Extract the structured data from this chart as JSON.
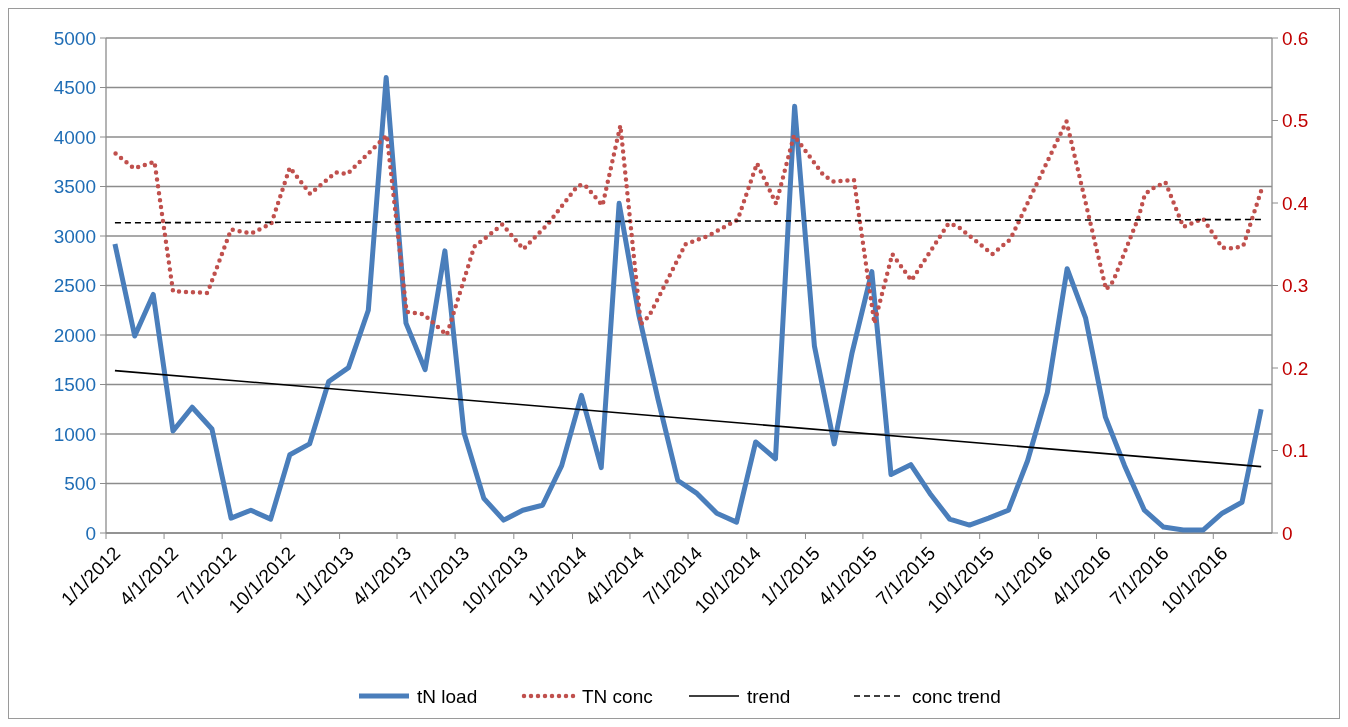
{
  "chart_data": {
    "type": "line",
    "xlim": [
      "2012-01-01",
      "2017-01-01"
    ],
    "xticks": [
      {
        "value": "2012-01-01",
        "label": "1/1/2012"
      },
      {
        "value": "2012-04-01",
        "label": "4/1/2012"
      },
      {
        "value": "2012-07-01",
        "label": "7/1/2012"
      },
      {
        "value": "2012-10-01",
        "label": "10/1/2012"
      },
      {
        "value": "2013-01-01",
        "label": "1/1/2013"
      },
      {
        "value": "2013-04-01",
        "label": "4/1/2013"
      },
      {
        "value": "2013-07-01",
        "label": "7/1/2013"
      },
      {
        "value": "2013-10-01",
        "label": "10/1/2013"
      },
      {
        "value": "2014-01-01",
        "label": "1/1/2014"
      },
      {
        "value": "2014-04-01",
        "label": "4/1/2014"
      },
      {
        "value": "2014-07-01",
        "label": "7/1/2014"
      },
      {
        "value": "2014-10-01",
        "label": "10/1/2014"
      },
      {
        "value": "2015-01-01",
        "label": "1/1/2015"
      },
      {
        "value": "2015-04-01",
        "label": "4/1/2015"
      },
      {
        "value": "2015-07-01",
        "label": "7/1/2015"
      },
      {
        "value": "2015-10-01",
        "label": "10/1/2015"
      },
      {
        "value": "2016-01-01",
        "label": "1/1/2016"
      },
      {
        "value": "2016-04-01",
        "label": "4/1/2016"
      },
      {
        "value": "2016-07-01",
        "label": "7/1/2016"
      },
      {
        "value": "2016-10-01",
        "label": "10/1/2016"
      }
    ],
    "ylim": [
      0,
      5000
    ],
    "yticks": [
      0,
      500,
      1000,
      1500,
      2000,
      2500,
      3000,
      3500,
      4000,
      4500,
      5000
    ],
    "y2lim": [
      0,
      0.6
    ],
    "y2ticks": [
      0,
      0.1,
      0.2,
      0.3,
      0.4,
      0.5,
      0.6
    ],
    "grid": "y",
    "legend": "bottom",
    "x": [
      "2012-01-15",
      "2012-02-15",
      "2012-03-15",
      "2012-04-15",
      "2012-05-15",
      "2012-06-15",
      "2012-07-15",
      "2012-08-15",
      "2012-09-15",
      "2012-10-15",
      "2012-11-15",
      "2012-12-15",
      "2013-01-15",
      "2013-02-15",
      "2013-03-15",
      "2013-04-15",
      "2013-05-15",
      "2013-06-15",
      "2013-07-15",
      "2013-08-15",
      "2013-09-15",
      "2013-10-15",
      "2013-11-15",
      "2013-12-15",
      "2014-01-15",
      "2014-02-15",
      "2014-03-15",
      "2014-04-15",
      "2014-05-15",
      "2014-06-15",
      "2014-07-15",
      "2014-08-15",
      "2014-09-15",
      "2014-10-15",
      "2014-11-15",
      "2014-12-15",
      "2015-01-15",
      "2015-02-15",
      "2015-03-15",
      "2015-04-15",
      "2015-05-15",
      "2015-06-15",
      "2015-07-15",
      "2015-08-15",
      "2015-09-15",
      "2015-10-15",
      "2015-11-15",
      "2015-12-15",
      "2016-01-15",
      "2016-02-15",
      "2016-03-15",
      "2016-04-15",
      "2016-05-15",
      "2016-06-15",
      "2016-07-15",
      "2016-08-15",
      "2016-09-15",
      "2016-10-15",
      "2016-11-15",
      "2016-12-15"
    ],
    "series": [
      {
        "name": "tN load",
        "color": "#4a7ebb",
        "line_style": "solid",
        "values": [
          2920,
          1990,
          2410,
          1030,
          1270,
          1050,
          150,
          230,
          140,
          790,
          900,
          1530,
          1670,
          2250,
          4600,
          2120,
          1650,
          2850,
          1010,
          350,
          130,
          230,
          280,
          680,
          1390,
          660,
          3330,
          2200,
          1350,
          530,
          400,
          200,
          110,
          920,
          750,
          4310,
          1890,
          900,
          1820,
          2640,
          590,
          690,
          400,
          140,
          80,
          150,
          230,
          730,
          1420,
          2670,
          2170,
          1170,
          680,
          230,
          60,
          30,
          30,
          200,
          310,
          1250
        ]
      },
      {
        "name": "TN conc",
        "color": "#c0504d",
        "line_style": "dotted",
        "axis": "y2",
        "x": [
          "2012-01-16",
          "2012-02-14",
          "2012-03-17",
          "2012-04-15",
          "2012-06-08",
          "2012-07-15",
          "2012-08-15",
          "2012-09-16",
          "2012-10-15",
          "2012-11-16",
          "2012-12-26",
          "2013-01-13",
          "2013-03-16",
          "2013-04-16",
          "2013-05-13",
          "2013-06-18",
          "2013-07-31",
          "2013-08-15",
          "2013-09-13",
          "2013-10-16",
          "2013-11-24",
          "2014-01-09",
          "2014-01-20",
          "2014-02-17",
          "2014-02-21",
          "2014-03-17",
          "2014-04-18",
          "2014-05-01",
          "2014-06-27",
          "2014-08-01",
          "2014-09-17",
          "2014-10-17",
          "2014-11-16",
          "2014-12-14",
          "2015-01-29",
          "2015-02-14",
          "2015-03-18",
          "2015-04-19",
          "2015-05-17",
          "2015-06-16",
          "2015-08-13",
          "2015-08-27",
          "2015-10-21",
          "2015-11-18",
          "2015-12-04",
          "2016-02-14",
          "2016-04-16",
          "2016-04-27",
          "2016-06-06",
          "2016-06-16",
          "2016-07-01",
          "2016-07-18",
          "2016-08-01",
          "2016-08-15",
          "2016-09-15",
          "2016-10-15",
          "2016-10-31",
          "2016-11-17",
          "2016-12-16"
        ],
        "values": [
          0.46,
          0.442,
          0.45,
          0.293,
          0.291,
          0.368,
          0.363,
          0.375,
          0.443,
          0.411,
          0.437,
          0.435,
          0.482,
          0.268,
          0.265,
          0.24,
          0.347,
          0.356,
          0.374,
          0.344,
          0.375,
          0.421,
          0.422,
          0.397,
          0.411,
          0.494,
          0.253,
          0.263,
          0.35,
          0.36,
          0.38,
          0.448,
          0.399,
          0.482,
          0.434,
          0.426,
          0.428,
          0.254,
          0.338,
          0.306,
          0.375,
          0.372,
          0.338,
          0.356,
          0.382,
          0.499,
          0.295,
          0.305,
          0.383,
          0.411,
          0.419,
          0.425,
          0.398,
          0.371,
          0.381,
          0.346,
          0.345,
          0.348,
          0.417
        ]
      },
      {
        "name": "trend",
        "color": "#000000",
        "line_style": "solid",
        "x": [
          "2012-01-15",
          "2016-12-15"
        ],
        "values": [
          1640,
          670
        ]
      },
      {
        "name": "conc trend",
        "color": "#000000",
        "line_style": "dashed",
        "axis": "y2",
        "x": [
          "2012-01-15",
          "2016-12-15"
        ],
        "values": [
          0.376,
          0.38
        ]
      }
    ]
  }
}
